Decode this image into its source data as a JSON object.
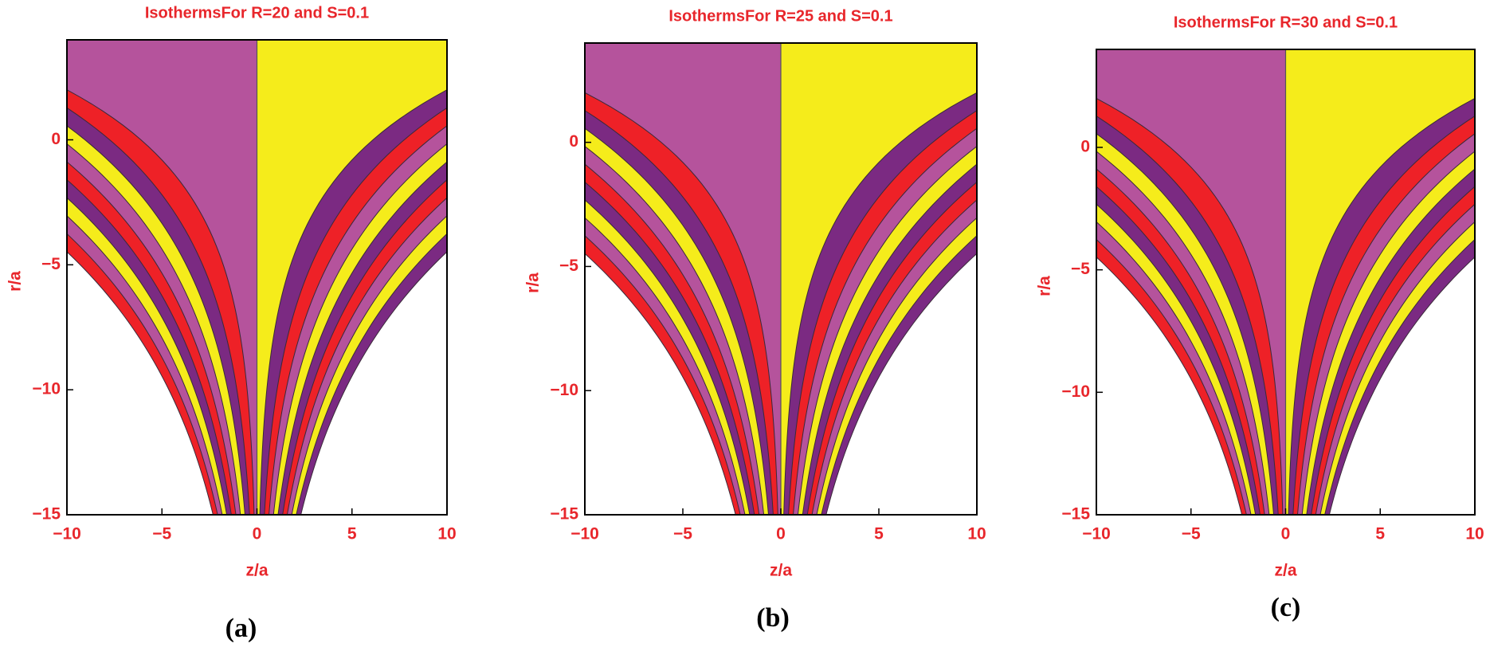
{
  "chart_data": [
    {
      "type": "contour",
      "title": "IsothermsFor R=20 and S=0.1",
      "xlabel": "z/a",
      "ylabel": "r/a",
      "label": "(a)",
      "xlim": [
        -10,
        10
      ],
      "ylim": [
        -15,
        4
      ],
      "xticks": [
        {
          "value": -10,
          "label": "−10"
        },
        {
          "value": -5,
          "label": "−5"
        },
        0,
        5,
        10
      ],
      "yticks": [
        {
          "value": -15,
          "label": "−15"
        },
        {
          "value": -10,
          "label": "−10"
        },
        {
          "value": -5,
          "label": "−5"
        },
        0
      ],
      "band_colors": [
        "#f5ec1b",
        "#7b2a82",
        "#ee2127",
        "#b5539c"
      ]
    },
    {
      "type": "contour",
      "title": "IsothermsFor R=25 and S=0.1",
      "xlabel": "z/a",
      "ylabel": "r/a",
      "label": "(b)",
      "xlim": [
        -10,
        10
      ],
      "ylim": [
        -15,
        4
      ],
      "xticks": [
        {
          "value": -10,
          "label": "−10"
        },
        {
          "value": -5,
          "label": "−5"
        },
        0,
        5,
        10
      ],
      "yticks": [
        {
          "value": -15,
          "label": "−15"
        },
        {
          "value": -10,
          "label": "−10"
        },
        {
          "value": -5,
          "label": "−5"
        },
        0
      ],
      "band_colors": [
        "#f5ec1b",
        "#7b2a82",
        "#ee2127",
        "#b5539c"
      ]
    },
    {
      "type": "contour",
      "title": "IsothermsFor R=30 and S=0.1",
      "xlabel": "z/a",
      "ylabel": "r/a",
      "label": "(c)",
      "xlim": [
        -10,
        10
      ],
      "ylim": [
        -15,
        4
      ],
      "xticks": [
        {
          "value": -10,
          "label": "−10"
        },
        {
          "value": -5,
          "label": "−5"
        },
        0,
        5,
        10
      ],
      "yticks": [
        {
          "value": -15,
          "label": "−15"
        },
        {
          "value": -10,
          "label": "−10"
        },
        {
          "value": -5,
          "label": "−5"
        },
        0
      ],
      "band_colors": [
        "#f5ec1b",
        "#7b2a82",
        "#ee2127",
        "#b5539c"
      ]
    }
  ]
}
